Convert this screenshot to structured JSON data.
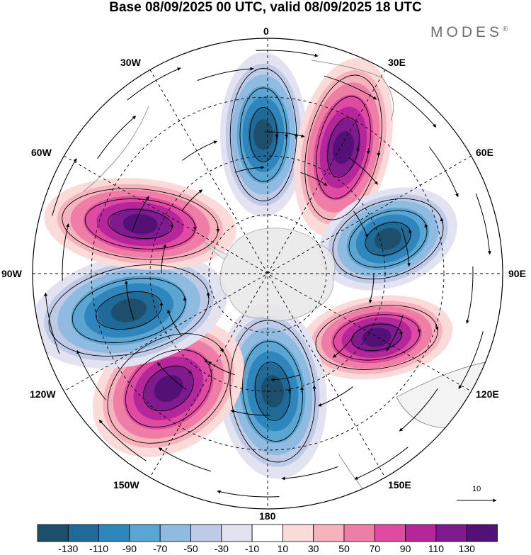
{
  "title": "Base 08/09/2025 00 UTC, valid 08/09/2025 18 UTC",
  "logo": "MODES",
  "logo_mark": "®",
  "longitude_labels": {
    "lon_0": "0",
    "lon_30e": "30E",
    "lon_60e": "60E",
    "lon_90e": "90E",
    "lon_120e": "120E",
    "lon_150e": "150E",
    "lon_180": "180",
    "lon_150w": "150W",
    "lon_120w": "120W",
    "lon_90w": "90W",
    "lon_60w": "60W",
    "lon_30w": "30W"
  },
  "vector_scale_label": "10",
  "colorbar": {
    "colors": [
      "#1d4e6b",
      "#1f6a96",
      "#2f86bd",
      "#5ba5d2",
      "#8fbbe0",
      "#bfcbe6",
      "#e3e2f1",
      "#ffffff",
      "#fbdada",
      "#f6b3be",
      "#ef7ea6",
      "#df4ba2",
      "#b5269b",
      "#7f1b8f",
      "#531075"
    ],
    "labels": [
      "-130",
      "-110",
      "-90",
      "-70",
      "-50",
      "-30",
      "-10",
      "10",
      "30",
      "50",
      "70",
      "90",
      "110",
      "130"
    ]
  },
  "anomaly_centers": [
    {
      "name": "low-0",
      "sign": "negative",
      "level": -130
    },
    {
      "name": "high-30e",
      "sign": "positive",
      "level": 130
    },
    {
      "name": "low-75e",
      "sign": "negative",
      "level": -130
    },
    {
      "name": "high-110e",
      "sign": "positive",
      "level": 130
    },
    {
      "name": "low-180",
      "sign": "negative",
      "level": -130
    },
    {
      "name": "high-150w",
      "sign": "positive",
      "level": 130
    },
    {
      "name": "low-95w",
      "sign": "negative",
      "level": -130
    },
    {
      "name": "high-70w",
      "sign": "positive",
      "level": 130
    }
  ]
}
